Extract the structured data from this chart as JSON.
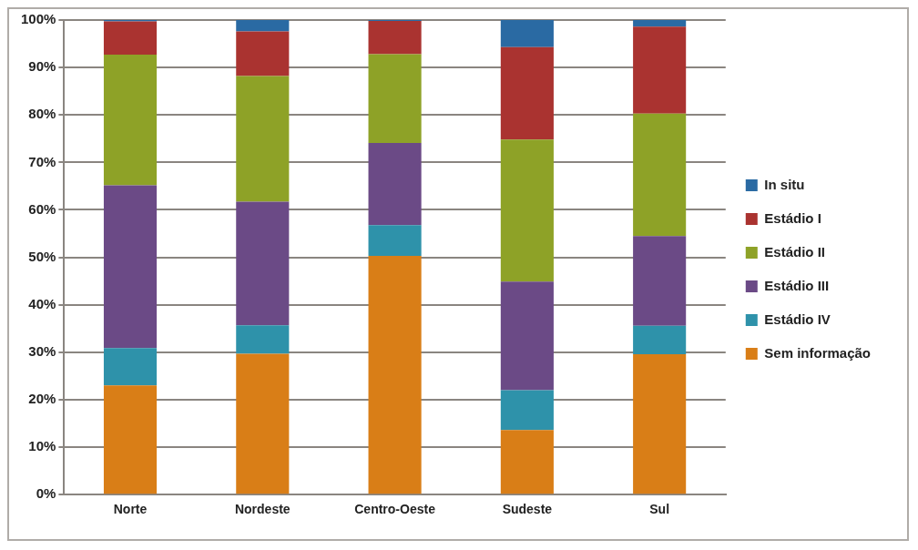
{
  "chart_data": {
    "type": "bar",
    "stacked": true,
    "categories": [
      "Norte",
      "Nordeste",
      "Centro-Oeste",
      "Sudeste",
      "Sul"
    ],
    "series": [
      {
        "name": "Sem informação",
        "color": "#d97e17",
        "values": [
          23.0,
          29.7,
          50.3,
          13.6,
          29.6
        ]
      },
      {
        "name": "Estádio IV",
        "color": "#2e92aa",
        "values": [
          7.9,
          6.0,
          6.5,
          8.4,
          6.0
        ]
      },
      {
        "name": "Estádio III",
        "color": "#6b4a86",
        "values": [
          34.3,
          26.0,
          17.3,
          22.9,
          18.9
        ]
      },
      {
        "name": "Estádio II",
        "color": "#8ea227",
        "values": [
          27.5,
          26.5,
          18.7,
          29.9,
          25.8
        ]
      },
      {
        "name": "Estádio I",
        "color": "#aa3330",
        "values": [
          7.0,
          9.4,
          7.0,
          19.5,
          18.3
        ]
      },
      {
        "name": "In situ",
        "color": "#2a6aa3",
        "values": [
          0.3,
          2.4,
          0.2,
          5.7,
          1.4
        ]
      }
    ],
    "ylim": [
      0,
      100
    ],
    "yticks": [
      {
        "value": 0,
        "label": "0%"
      },
      {
        "value": 10,
        "label": "10%"
      },
      {
        "value": 20,
        "label": "20%"
      },
      {
        "value": 30,
        "label": "30%"
      },
      {
        "value": 40,
        "label": "40%"
      },
      {
        "value": 50,
        "label": "50%"
      },
      {
        "value": 60,
        "label": "60%"
      },
      {
        "value": 70,
        "label": "70%"
      },
      {
        "value": 80,
        "label": "80%"
      },
      {
        "value": 90,
        "label": "90%"
      },
      {
        "value": 100,
        "label": "100%"
      }
    ],
    "grid": "y",
    "legend": "right"
  }
}
